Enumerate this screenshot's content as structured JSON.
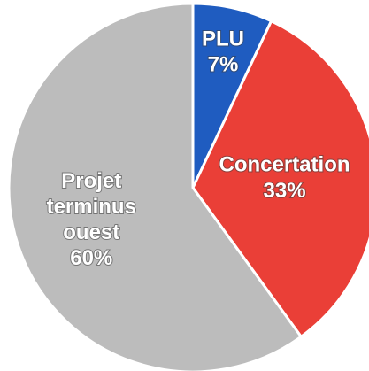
{
  "chart_data": {
    "type": "pie",
    "categories": [
      "PLU",
      "Concertation",
      "Projet terminus ouest"
    ],
    "values": [
      7,
      33,
      60
    ],
    "value_labels": [
      "7%",
      "33%",
      "60%"
    ],
    "colors": [
      "#1f5cc0",
      "#ea3f37",
      "#bcbcbc"
    ],
    "start_angle": 0,
    "direction": "clockwise"
  }
}
